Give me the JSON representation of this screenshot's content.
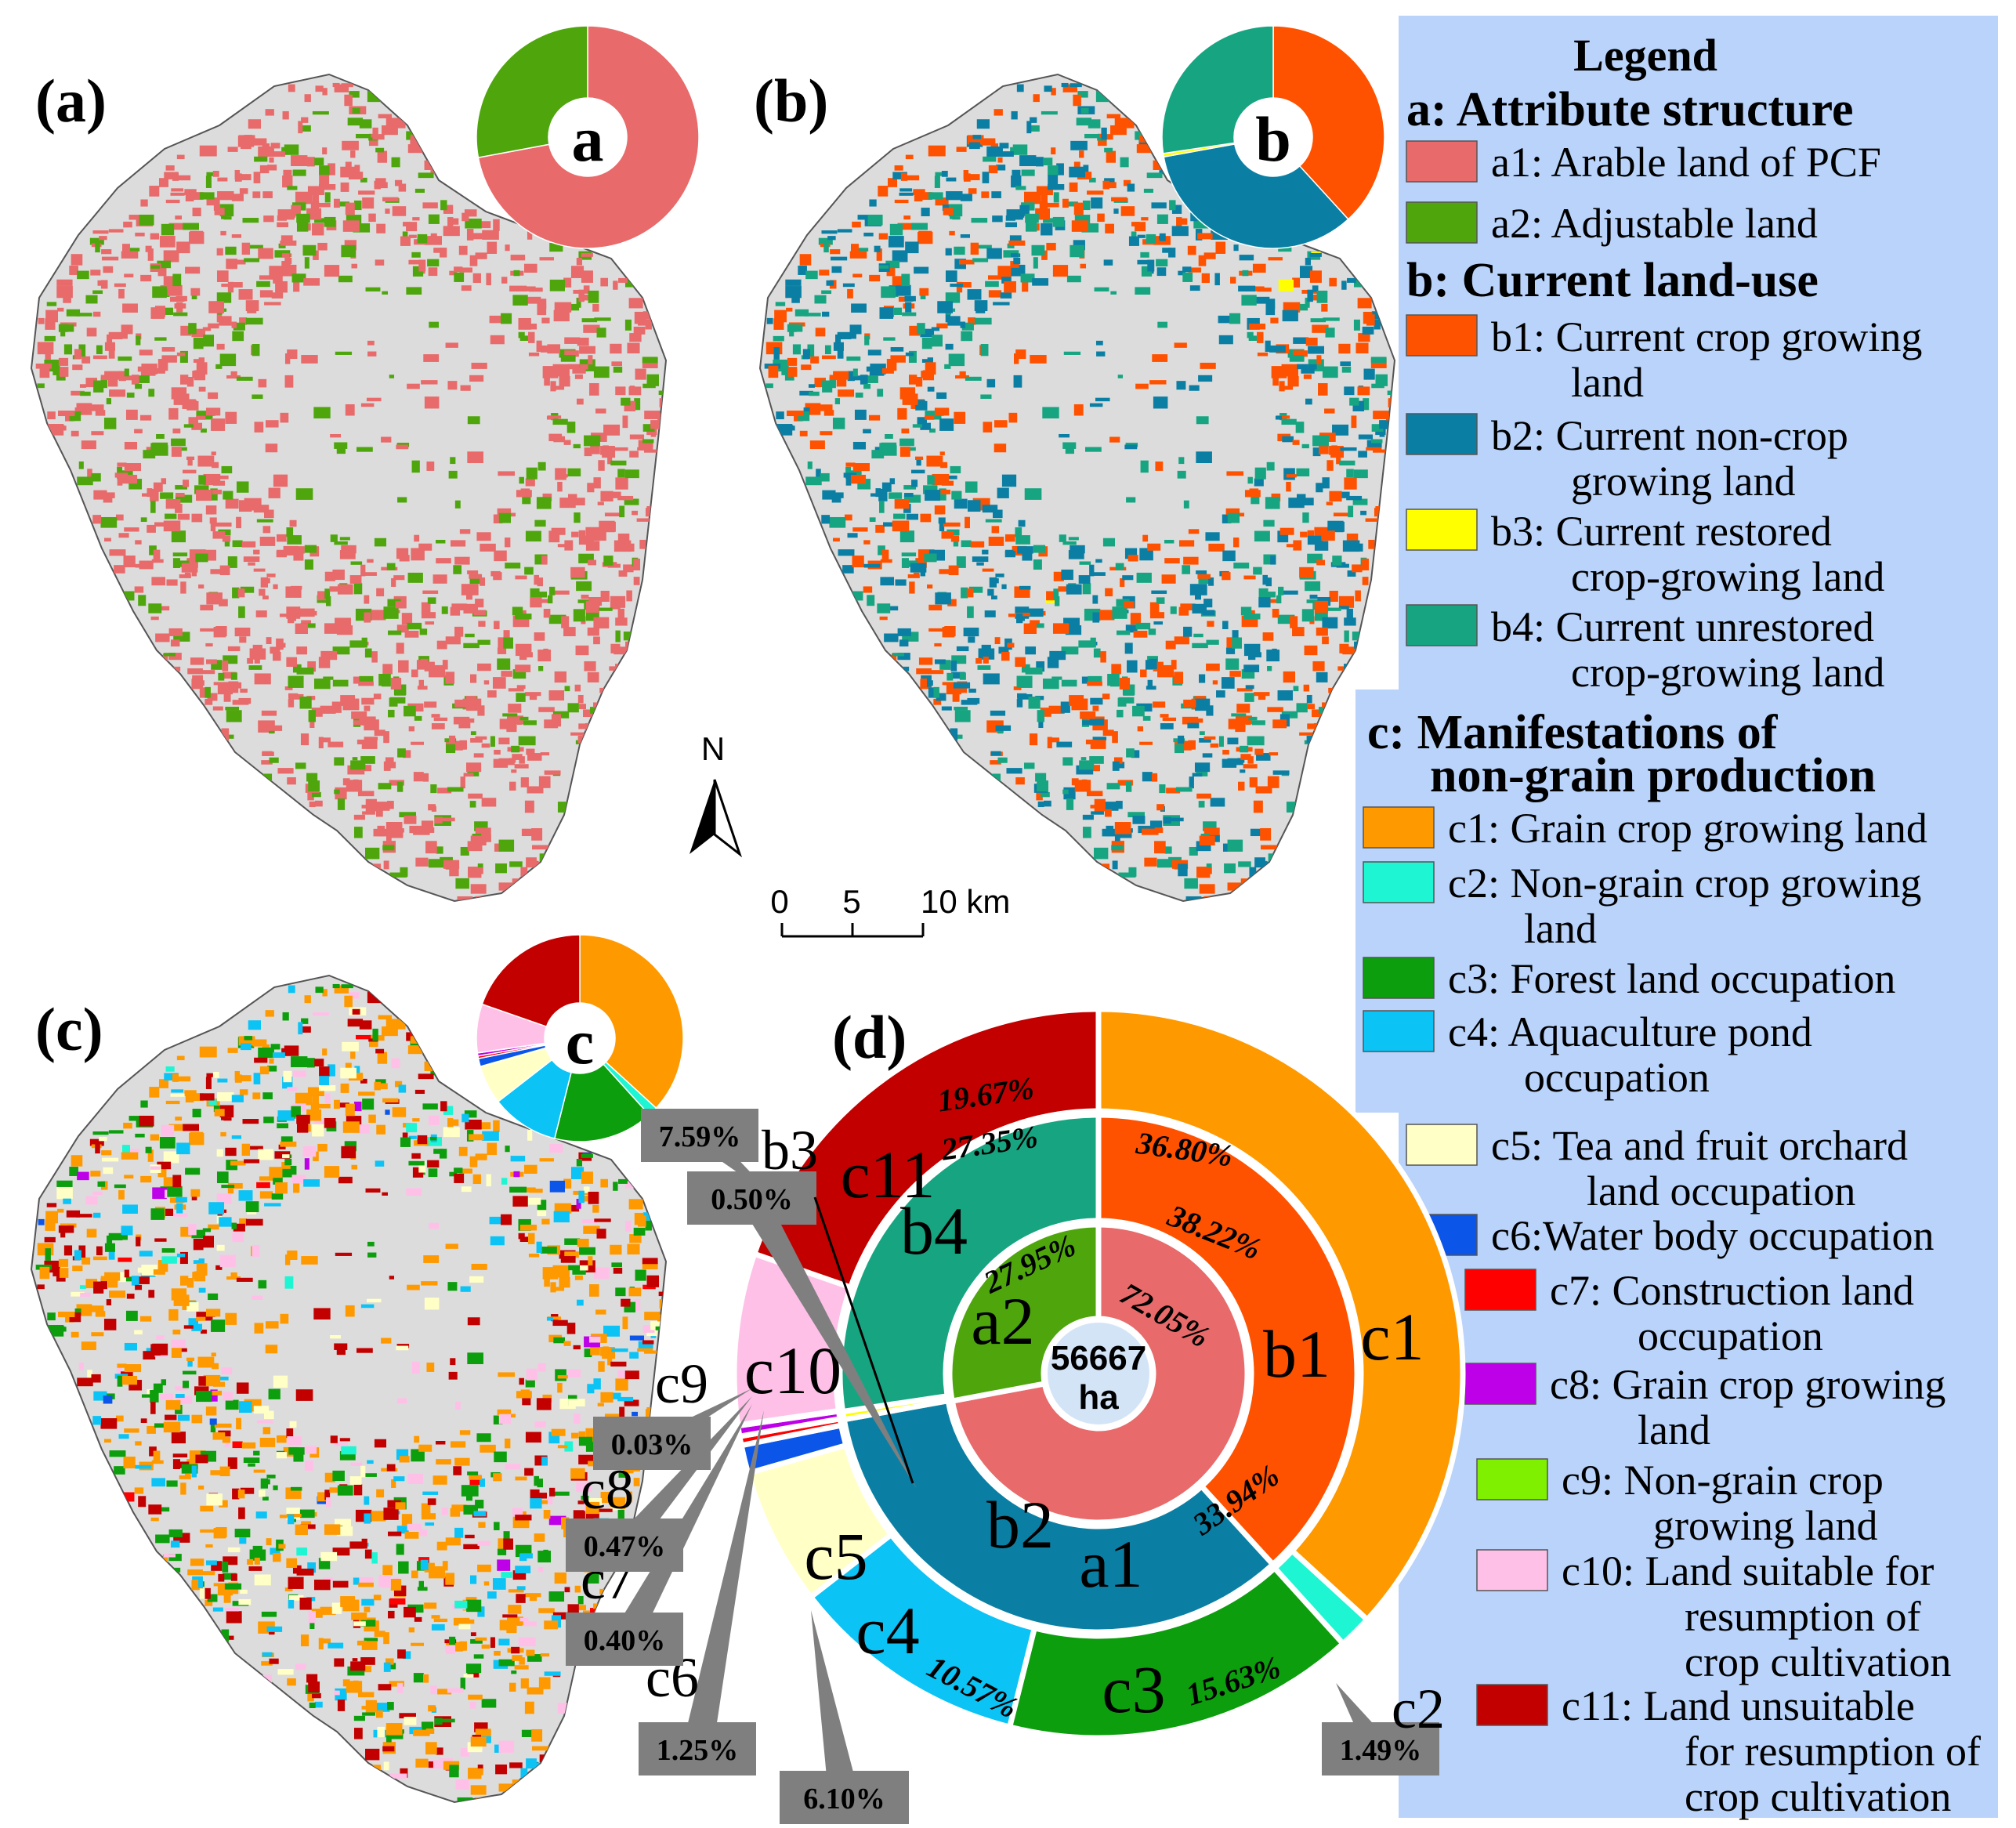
{
  "panels": {
    "a": {
      "label": "(a)",
      "pie_letter": "a"
    },
    "b": {
      "label": "(b)",
      "pie_letter": "b"
    },
    "c": {
      "label": "(c)",
      "pie_letter": "c"
    },
    "d": {
      "label": "(d)"
    }
  },
  "north_arrow": {
    "label": "N"
  },
  "scale_bar": {
    "ticks": [
      "0",
      "5",
      "10 km"
    ]
  },
  "legend": {
    "title": "Legend",
    "groups": [
      {
        "heading": "a: Attribute structure",
        "items": [
          {
            "key": "a1",
            "lines": [
              "a1: Arable land of PCF"
            ],
            "color": "#E86A6A"
          },
          {
            "key": "a2",
            "lines": [
              "a2: Adjustable land"
            ],
            "color": "#4EA60C"
          }
        ]
      },
      {
        "heading": "b: Current land-use",
        "items": [
          {
            "key": "b1",
            "lines": [
              "b1: Current crop growing",
              "land"
            ],
            "color": "#FF5200"
          },
          {
            "key": "b2",
            "lines": [
              "b2: Current non-crop",
              "growing land"
            ],
            "color": "#0B7FA3"
          },
          {
            "key": "b3",
            "lines": [
              "b3: Current restored",
              "crop-growing land"
            ],
            "color": "#FFFF00"
          },
          {
            "key": "b4",
            "lines": [
              "b4: Current unrestored",
              "crop-growing land"
            ],
            "color": "#17A581"
          }
        ]
      },
      {
        "heading": "c: Manifestations of",
        "heading2": "non-grain  production",
        "items": [
          {
            "key": "c1",
            "lines": [
              "c1: Grain crop growing land"
            ],
            "color": "#FF9900"
          },
          {
            "key": "c2",
            "lines": [
              "c2: Non-grain crop growing",
              "land"
            ],
            "color": "#1EF5D2"
          },
          {
            "key": "c3",
            "lines": [
              "c3: Forest land occupation"
            ],
            "color": "#0C9E0C"
          },
          {
            "key": "c4",
            "lines": [
              "c4: Aquaculture pond",
              "occupation"
            ],
            "color": "#0BC3F5"
          },
          {
            "key": "c5",
            "lines": [
              "c5: Tea and fruit orchard",
              "land occupation"
            ],
            "color": "#FFFFC6"
          },
          {
            "key": "c6",
            "lines": [
              "c6:Water body occupation"
            ],
            "color": "#0B55E8"
          },
          {
            "key": "c7",
            "lines": [
              "c7: Construction land",
              "occupation"
            ],
            "color": "#FF0000"
          },
          {
            "key": "c8",
            "lines": [
              "c8: Grain crop growing",
              "land"
            ],
            "color": "#BE00E8"
          },
          {
            "key": "c9",
            "lines": [
              "c9: Non-grain crop",
              "growing land"
            ],
            "color": "#7EF000"
          },
          {
            "key": "c10",
            "lines": [
              "c10: Land suitable for",
              "resumption of",
              "crop cultivation"
            ],
            "color": "#FFC0E8"
          },
          {
            "key": "c11",
            "lines": [
              "c11: Land unsuitable",
              "for resumption of",
              "crop cultivation"
            ],
            "color": "#C30000"
          }
        ]
      }
    ]
  },
  "chart_data": {
    "type": "sunburst",
    "center_label": [
      "56667",
      "ha"
    ],
    "rings": [
      {
        "name": "inner",
        "segments": [
          {
            "key": "a1",
            "label": "a1",
            "value": 72.05,
            "pct_label": "72.05%",
            "color": "#E86A6A"
          },
          {
            "key": "a2",
            "label": "a2",
            "value": 27.95,
            "pct_label": "27.95%",
            "color": "#4EA60C"
          }
        ]
      },
      {
        "name": "middle",
        "segments": [
          {
            "key": "b1",
            "label": "b1",
            "value": 38.22,
            "pct_label": "38.22%",
            "color": "#FF5200"
          },
          {
            "key": "b2",
            "label": "b2",
            "value": 33.94,
            "pct_label": "33.94%",
            "color": "#0B7FA3"
          },
          {
            "key": "b3",
            "label": "b3",
            "value": 0.5,
            "pct_label": "0.50%",
            "color": "#FFFF00"
          },
          {
            "key": "b4",
            "label": "b4",
            "value": 27.35,
            "pct_label": "27.35%",
            "color": "#17A581"
          }
        ]
      },
      {
        "name": "outer",
        "segments": [
          {
            "key": "c1",
            "label": "c1",
            "value": 36.8,
            "pct_label": "36.80%",
            "color": "#FF9900"
          },
          {
            "key": "c2",
            "label": "c2",
            "value": 1.49,
            "pct_label": "1.49%",
            "color": "#1EF5D2"
          },
          {
            "key": "c3",
            "label": "c3",
            "value": 15.63,
            "pct_label": "15.63%",
            "color": "#0C9E0C"
          },
          {
            "key": "c4",
            "label": "c4",
            "value": 10.57,
            "pct_label": "10.57%",
            "color": "#0BC3F5"
          },
          {
            "key": "c5",
            "label": "c5",
            "value": 6.1,
            "pct_label": "6.10%",
            "color": "#FFFFC6"
          },
          {
            "key": "c6",
            "label": "c6",
            "value": 1.25,
            "pct_label": "1.25%",
            "color": "#0B55E8"
          },
          {
            "key": "c7",
            "label": "c7",
            "value": 0.4,
            "pct_label": "0.40%",
            "color": "#FF0000"
          },
          {
            "key": "c8",
            "label": "c8",
            "value": 0.47,
            "pct_label": "0.47%",
            "color": "#BE00E8"
          },
          {
            "key": "c9",
            "label": "c9",
            "value": 0.03,
            "pct_label": "0.03%",
            "color": "#7EF000"
          },
          {
            "key": "c10",
            "label": "c10",
            "value": 7.59,
            "pct_label": "7.59%",
            "color": "#FFC0E8"
          },
          {
            "key": "c11",
            "label": "c11",
            "value": 19.67,
            "pct_label": "19.67%",
            "color": "#C30000"
          }
        ]
      }
    ]
  },
  "colors": {
    "map_base": "#DCDCDC",
    "legend_bg": "#B9D3FA",
    "callout_bg": "#7F7F7F"
  }
}
